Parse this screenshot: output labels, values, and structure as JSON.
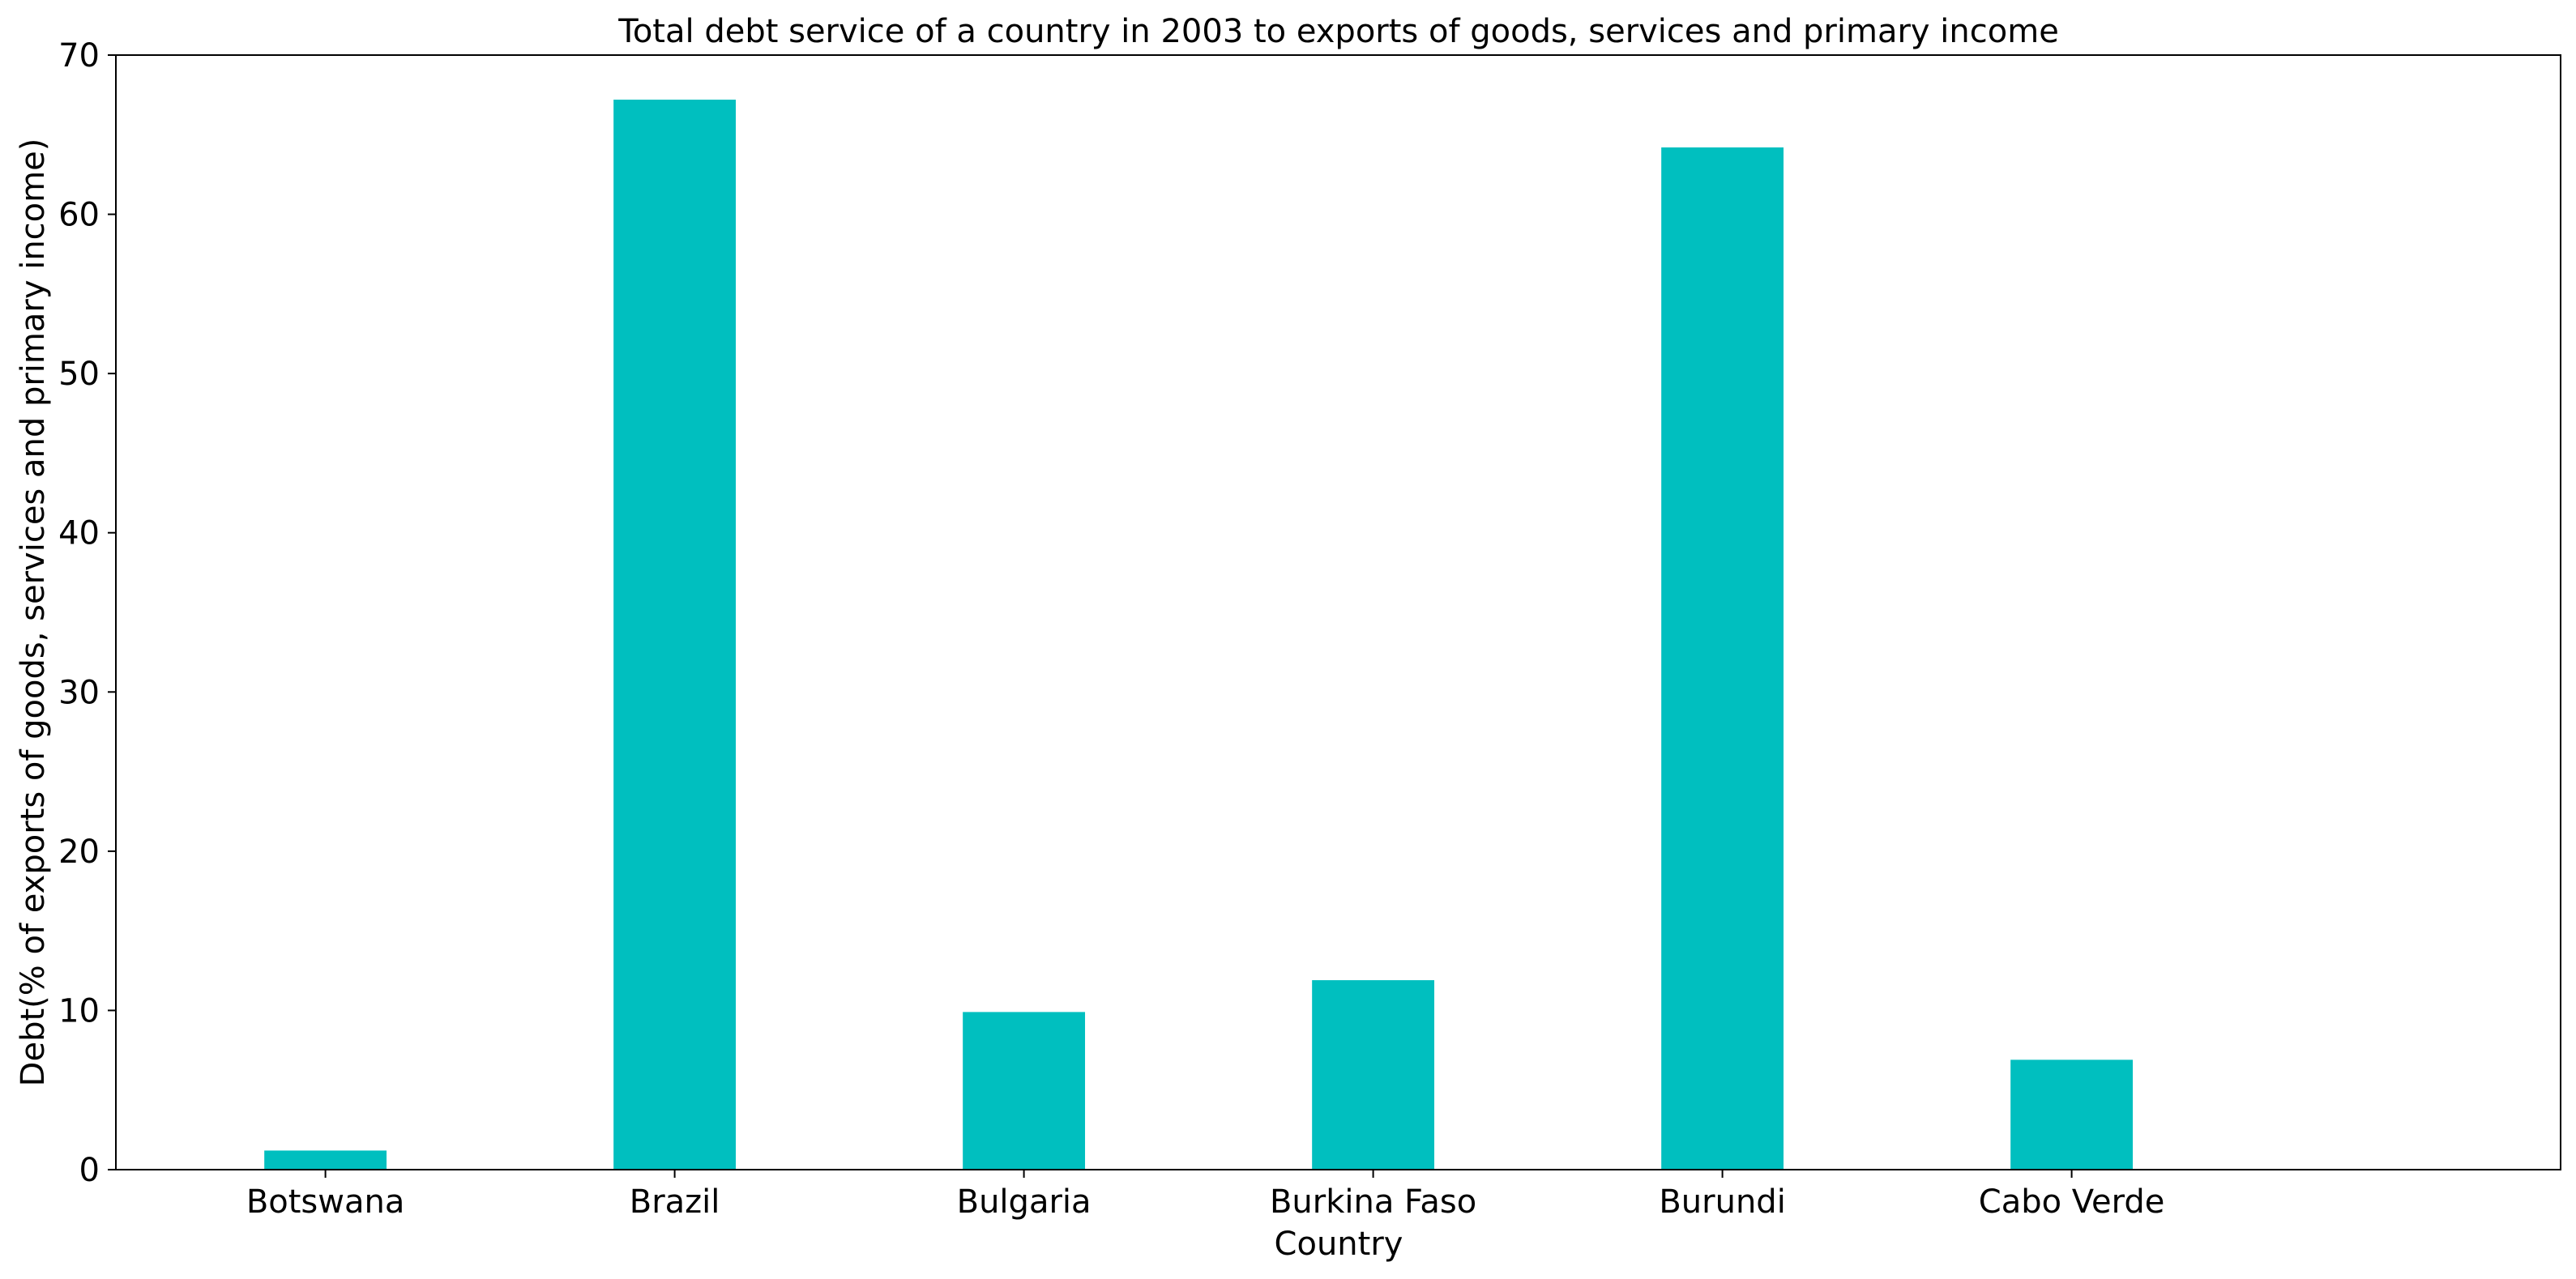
{
  "chart_data": {
    "type": "bar",
    "title": "Total debt service of a country in 2003 to exports of goods, services and primary income",
    "xlabel": "Country",
    "ylabel": "Debt(% of exports of goods, services and primary income)",
    "categories": [
      "Botswana",
      "Brazil",
      "Bulgaria",
      "Burkina Faso",
      "Burundi",
      "Cabo Verde"
    ],
    "values": [
      1.2,
      67.2,
      9.9,
      11.9,
      64.2,
      6.9
    ],
    "ylim": [
      0,
      70
    ],
    "yticks": [
      0,
      10,
      20,
      30,
      40,
      50,
      60,
      70
    ],
    "grid": false,
    "legend": "none",
    "bar_color": "#00bfbf"
  }
}
